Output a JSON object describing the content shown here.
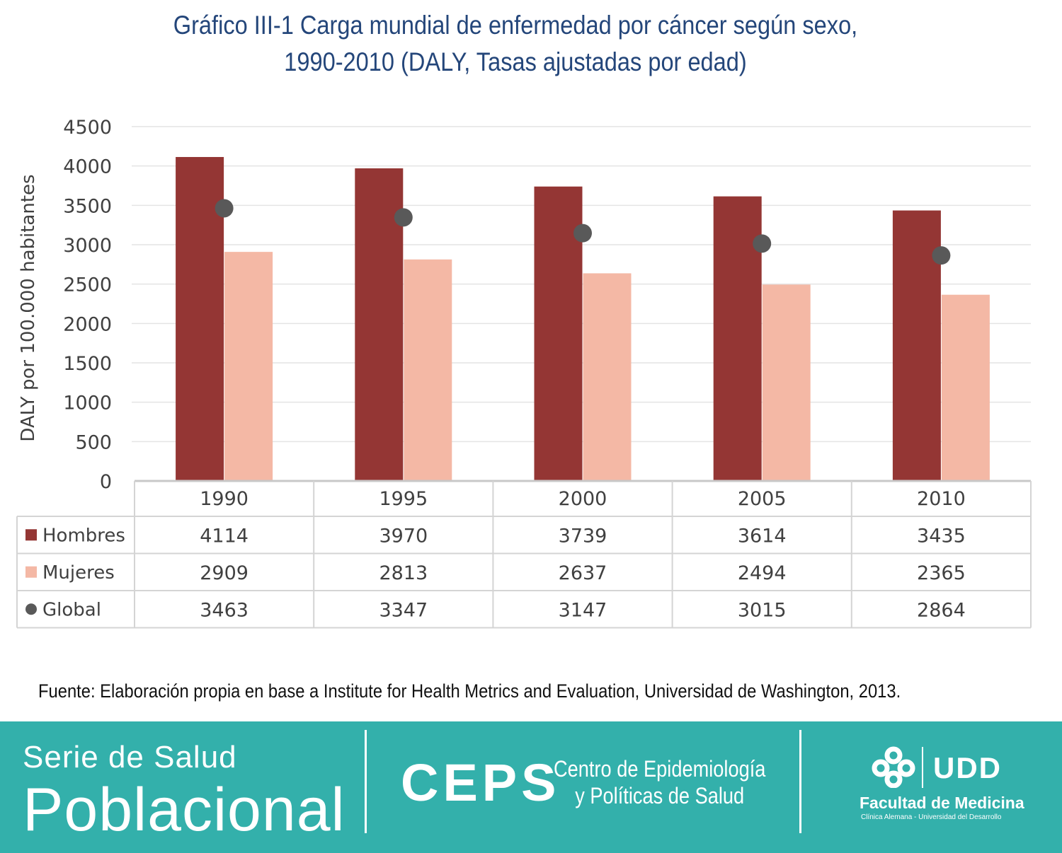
{
  "title_line1": "Gráfico III-1 Carga mundial de enfermedad por cáncer según sexo,",
  "title_line2": "1990-2010 (DALY, Tasas ajustadas por edad)",
  "chart_data": {
    "type": "bar",
    "title": "Gráfico III-1 Carga mundial de enfermedad por cáncer según sexo, 1990-2010 (DALY, Tasas ajustadas por edad)",
    "ylabel": "DALY  por 100.000 habitantes",
    "xlabel": "",
    "ylim": [
      0,
      4500
    ],
    "yticks": [
      0,
      500,
      1000,
      1500,
      2000,
      2500,
      3000,
      3500,
      4000,
      4500
    ],
    "grid": true,
    "legend": "data-table-left",
    "categories": [
      "1990",
      "1995",
      "2000",
      "2005",
      "2010"
    ],
    "series": [
      {
        "name": "Hombres",
        "type": "bar",
        "color": "#943634",
        "values": [
          4114,
          3970,
          3739,
          3614,
          3435
        ]
      },
      {
        "name": "Mujeres",
        "type": "bar",
        "color": "#f4b8a5",
        "values": [
          2909,
          2813,
          2637,
          2494,
          2365
        ]
      },
      {
        "name": "Global",
        "type": "marker",
        "color": "#595959",
        "values": [
          3463,
          3347,
          3147,
          3015,
          2864
        ]
      }
    ]
  },
  "source_text": "Fuente: Elaboración propia en base a Institute for Health Metrics and Evaluation, Universidad de Washington, 2013.",
  "footer": {
    "serie_line1": "Serie de Salud",
    "serie_line2": "Poblacional",
    "ceps_logo": "CEPS",
    "ceps_line1": "Centro de Epidemiología",
    "ceps_line2": "y Políticas de Salud",
    "udd_logo": "UDD",
    "faculty": "Facultad de Medicina",
    "faculty_sub": "Clínica Alemana - Universidad del Desarrollo",
    "background_color": "#33b0ab"
  }
}
